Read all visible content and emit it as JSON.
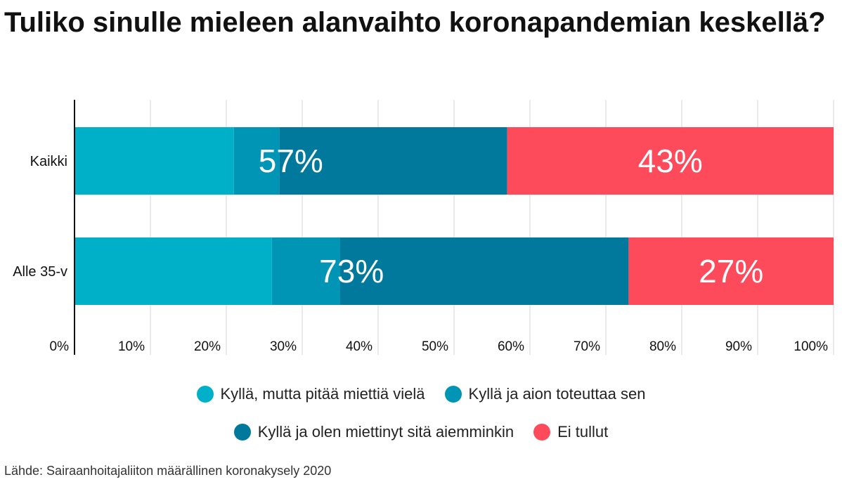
{
  "title": "Tuliko sinulle mieleen alanvaihto koronapandemian keskellä?",
  "source": "Lähde: Sairaanhoitajaliiton määrällinen koronakysely 2020",
  "chart_data": {
    "type": "bar",
    "orientation": "horizontal",
    "stacked": true,
    "categories": [
      "Kaikki",
      "Alle 35-v"
    ],
    "series": [
      {
        "name": "Kyllä, mutta pitää miettiä vielä",
        "color": "#00b0c8",
        "values": [
          21,
          26
        ]
      },
      {
        "name": "Kyllä ja aion toteuttaa sen",
        "color": "#0095b5",
        "values": [
          6,
          9
        ]
      },
      {
        "name": "Kyllä ja olen miettinyt sitä aiemminkin",
        "color": "#00799d",
        "values": [
          30,
          38
        ]
      },
      {
        "name": "Ei tullut",
        "color": "#fd4b5c",
        "values": [
          43,
          27
        ]
      }
    ],
    "bar_labels": [
      {
        "text": "57%",
        "category": "Kaikki",
        "series_range": [
          0,
          2
        ]
      },
      {
        "text": "43%",
        "category": "Kaikki",
        "series_range": [
          3,
          3
        ]
      },
      {
        "text": "73%",
        "category": "Alle 35-v",
        "series_range": [
          0,
          2
        ]
      },
      {
        "text": "27%",
        "category": "Alle 35-v",
        "series_range": [
          3,
          3
        ]
      }
    ],
    "x_ticks": [
      0,
      10,
      20,
      30,
      40,
      50,
      60,
      70,
      80,
      90,
      100
    ],
    "x_tick_labels": [
      "0%",
      "10%",
      "20%",
      "30%",
      "40%",
      "50%",
      "60%",
      "70%",
      "80%",
      "90%",
      "100%"
    ],
    "xlim": [
      0,
      100
    ],
    "grid": true,
    "legend_position": "bottom"
  },
  "legend": {
    "row1": [
      {
        "label": "Kyllä, mutta pitää miettiä vielä",
        "color": "#00b0c8"
      },
      {
        "label": "Kyllä ja aion toteuttaa sen",
        "color": "#0095b5"
      }
    ],
    "row2": [
      {
        "label": "Kyllä ja olen miettinyt sitä aiemminkin",
        "color": "#00799d"
      },
      {
        "label": "Ei tullut",
        "color": "#fd4b5c"
      }
    ]
  }
}
